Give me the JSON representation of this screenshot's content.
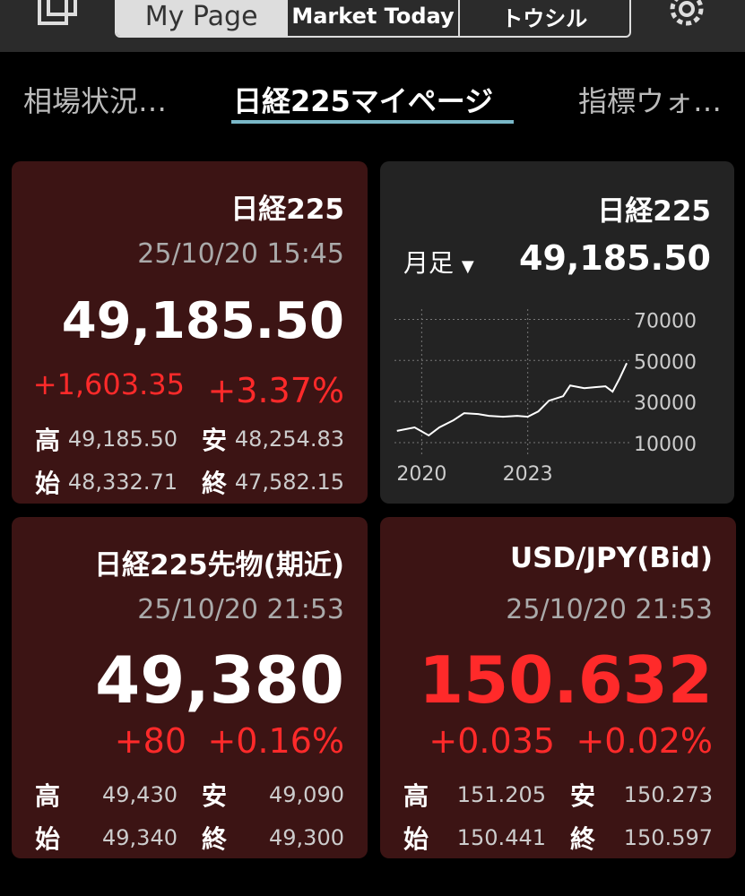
{
  "toolbar": {
    "tabs": [
      "My Page",
      "Market Today",
      "トウシル"
    ]
  },
  "subtabs": [
    "相場状況…",
    "日経225マイページ",
    "指標ウォ…"
  ],
  "cards": [
    {
      "title": "日経225",
      "datetime": "25/10/20 15:45",
      "price": "49,185.50",
      "change": "+1,603.35",
      "change_pct": "+3.37%",
      "stats": [
        [
          "高",
          "49,185.50",
          "安",
          "48,254.83"
        ],
        [
          "始",
          "48,332.71",
          "終",
          "47,582.15"
        ]
      ]
    },
    {
      "title": "日経225先物(期近)",
      "datetime": "25/10/20 21:53",
      "price": "49,380",
      "change": "+80",
      "change_pct": "+0.16%",
      "stats": [
        [
          "高",
          "49,430",
          "安",
          "49,090"
        ],
        [
          "始",
          "49,340",
          "終",
          "49,300"
        ]
      ]
    },
    {
      "title": "USD/JPY(Bid)",
      "datetime": "25/10/20 21:53",
      "price": "150.632",
      "change": "+0.035",
      "change_pct": "+0.02%",
      "stats": [
        [
          "高",
          "151.205",
          "安",
          "150.273"
        ],
        [
          "始",
          "150.441",
          "終",
          "150.597"
        ]
      ]
    }
  ],
  "chart_card": {
    "title": "日経225",
    "period": "月足",
    "price": "49,185.50"
  },
  "chart_data": {
    "type": "line",
    "color": "#ffffff",
    "grid": true,
    "x": [
      2019.3,
      2019.8,
      2020.2,
      2020.5,
      2020.9,
      2021.2,
      2021.6,
      2021.9,
      2022.3,
      2022.7,
      2023.0,
      2023.3,
      2023.6,
      2024.0,
      2024.2,
      2024.6,
      2024.9,
      2025.2,
      2025.4,
      2025.6,
      2025.8
    ],
    "values": [
      15700,
      17400,
      13500,
      17400,
      20900,
      24300,
      23900,
      23000,
      22600,
      23000,
      22600,
      25200,
      30400,
      32600,
      37800,
      36500,
      37000,
      37400,
      34800,
      41300,
      48700
    ],
    "xlim": [
      2019.23,
      2025.95
    ],
    "xticks": [
      2020,
      2023
    ],
    "ylim": [
      3000,
      75000
    ],
    "yticks": [
      10000,
      30000,
      50000,
      70000
    ]
  }
}
